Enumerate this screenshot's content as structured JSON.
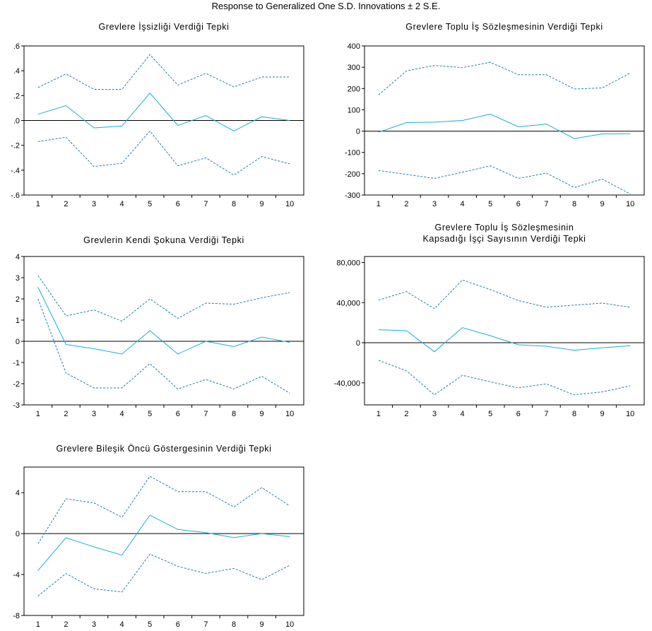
{
  "figure": {
    "title": "Response to Generalized One S.D. Innovations ± 2 S.E."
  },
  "colors": {
    "response": "#1aaed8",
    "band": "#1e7fb0",
    "zero": "#000000",
    "axis": "#000000"
  },
  "chart_data": [
    {
      "type": "line",
      "title_lines": [
        "Grevlere İşsizliği Verdiği Tepki"
      ],
      "x": [
        1,
        2,
        3,
        4,
        5,
        6,
        7,
        8,
        9,
        10
      ],
      "ylim": [
        -0.6,
        0.6
      ],
      "yticks": [
        -0.6,
        -0.4,
        -0.2,
        0,
        0.2,
        0.4,
        0.6
      ],
      "ytick_labels": [
        "-.6",
        "-.4",
        "-.2",
        ".0",
        ".2",
        ".4",
        ".6"
      ],
      "series": [
        {
          "values": [
            0.05,
            0.12,
            -0.06,
            -0.045,
            0.22,
            -0.04,
            0.04,
            -0.085,
            0.03,
            0.0
          ]
        },
        {
          "values": [
            0.265,
            0.375,
            0.25,
            0.25,
            0.53,
            0.285,
            0.38,
            0.27,
            0.35,
            0.35
          ]
        },
        {
          "values": [
            -0.17,
            -0.135,
            -0.37,
            -0.345,
            -0.085,
            -0.365,
            -0.3,
            -0.44,
            -0.29,
            -0.35
          ]
        }
      ]
    },
    {
      "type": "line",
      "title_lines": [
        "Grevlere Toplu İş Sözleşmesinin Verdiği Tepki"
      ],
      "x": [
        1,
        2,
        3,
        4,
        5,
        6,
        7,
        8,
        9,
        10
      ],
      "ylim": [
        -300,
        400
      ],
      "yticks": [
        -300,
        -200,
        -100,
        0,
        100,
        200,
        300,
        400
      ],
      "ytick_labels": [
        "-300",
        "-200",
        "-100",
        "0",
        "100",
        "200",
        "300",
        "400"
      ],
      "series": [
        {
          "values": [
            -5,
            40,
            42,
            50,
            80,
            20,
            33,
            -35,
            -13,
            -12
          ]
        },
        {
          "values": [
            170,
            283,
            308,
            298,
            323,
            265,
            265,
            198,
            203,
            273
          ]
        },
        {
          "values": [
            -185,
            -203,
            -222,
            -193,
            -163,
            -222,
            -197,
            -265,
            -225,
            -295
          ]
        }
      ]
    },
    {
      "type": "line",
      "title_lines": [
        "Grevlerin Kendi Şokuna Verdiği Tepki"
      ],
      "x": [
        1,
        2,
        3,
        4,
        5,
        6,
        7,
        8,
        9,
        10
      ],
      "ylim": [
        -3,
        4
      ],
      "yticks": [
        -3,
        -2,
        -1,
        0,
        1,
        2,
        3,
        4
      ],
      "ytick_labels": [
        "-3",
        "-2",
        "-1",
        "0",
        "1",
        "2",
        "3",
        "4"
      ],
      "series": [
        {
          "values": [
            2.55,
            -0.15,
            -0.35,
            -0.6,
            0.5,
            -0.6,
            0.0,
            -0.25,
            0.2,
            -0.05
          ]
        },
        {
          "values": [
            3.1,
            1.2,
            1.48,
            0.95,
            2.0,
            1.08,
            1.8,
            1.75,
            2.05,
            2.3
          ]
        },
        {
          "values": [
            2.0,
            -1.5,
            -2.2,
            -2.2,
            -1.05,
            -2.25,
            -1.8,
            -2.25,
            -1.65,
            -2.45
          ]
        }
      ]
    },
    {
      "type": "line",
      "title_lines": [
        "Grevlere Toplu İş Sözleşmesinin",
        "Kapsadığı İşçi Sayısının Verdiği Tepki"
      ],
      "x": [
        1,
        2,
        3,
        4,
        5,
        6,
        7,
        8,
        9,
        10
      ],
      "ylim": [
        -62000,
        86000
      ],
      "yticks": [
        -40000,
        0,
        40000,
        80000
      ],
      "ytick_labels": [
        "-40,000",
        "0",
        "40,000",
        "80,000"
      ],
      "series": [
        {
          "values": [
            13000,
            12000,
            -9000,
            15000,
            7000,
            -2000,
            -3500,
            -7500,
            -5000,
            -3000
          ]
        },
        {
          "values": [
            42500,
            51000,
            34000,
            62500,
            53000,
            42000,
            35500,
            37500,
            39500,
            35500
          ]
        },
        {
          "values": [
            -17500,
            -28000,
            -52000,
            -32500,
            -39000,
            -45000,
            -41000,
            -52000,
            -49000,
            -43000
          ]
        }
      ]
    },
    {
      "type": "line",
      "title_lines": [
        "Grevlere Bileşik Öncü Göstergesinin Verdiği Tepki"
      ],
      "x": [
        1,
        2,
        3,
        4,
        5,
        6,
        7,
        8,
        9,
        10
      ],
      "ylim": [
        -8,
        6.5
      ],
      "yticks": [
        -8,
        -4,
        0,
        4
      ],
      "ytick_labels": [
        "-8",
        "-4",
        "0",
        "4"
      ],
      "series": [
        {
          "values": [
            -3.6,
            -0.4,
            -1.3,
            -2.1,
            1.8,
            0.4,
            0.1,
            -0.4,
            0.0,
            -0.3
          ]
        },
        {
          "values": [
            -1.0,
            3.4,
            3.0,
            1.6,
            5.6,
            4.1,
            4.1,
            2.6,
            4.5,
            2.7
          ]
        },
        {
          "values": [
            -6.1,
            -3.9,
            -5.4,
            -5.7,
            -2.0,
            -3.2,
            -3.9,
            -3.4,
            -4.5,
            -3.1
          ]
        }
      ]
    }
  ]
}
